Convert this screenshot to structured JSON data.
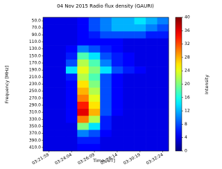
{
  "chart_data": {
    "type": "heatmap",
    "title": "04 Nov 2015 Radio flux density (GAURI)",
    "x_label": "Time [UT]",
    "y_label": "Frequency [MHz]",
    "colorbar_label": "Intensity",
    "colormap": "jet",
    "x": [
      "03:21:59",
      null,
      "03:24:04",
      null,
      "03:26:09",
      null,
      "03:28:14",
      null,
      "03:30:19",
      null,
      "03:32:24"
    ],
    "y": [
      "50.0",
      "70.0",
      "90.0",
      "110.0",
      "130.0",
      "150.0",
      "170.0",
      "190.0",
      "210.0",
      "230.0",
      "250.0",
      "270.0",
      "290.0",
      "310.0",
      "330.0",
      "350.0",
      "370.0",
      "390.0",
      "410.0"
    ],
    "values": [
      [
        4,
        4,
        4,
        5,
        8,
        10,
        12,
        12,
        14,
        12,
        10
      ],
      [
        4,
        4,
        4,
        5,
        8,
        10,
        12,
        12,
        12,
        10,
        8
      ],
      [
        4,
        4,
        4,
        5,
        6,
        8,
        8,
        8,
        8,
        6,
        6
      ],
      [
        4,
        4,
        4,
        5,
        5,
        5,
        5,
        4,
        4,
        4,
        4
      ],
      [
        4,
        4,
        5,
        10,
        8,
        6,
        5,
        4,
        4,
        4,
        4
      ],
      [
        4,
        4,
        6,
        18,
        14,
        8,
        6,
        5,
        4,
        4,
        4
      ],
      [
        4,
        4,
        8,
        22,
        18,
        10,
        6,
        5,
        4,
        4,
        4
      ],
      [
        4,
        4,
        14,
        24,
        20,
        14,
        8,
        6,
        5,
        4,
        4
      ],
      [
        4,
        4,
        6,
        22,
        18,
        8,
        5,
        4,
        4,
        4,
        4
      ],
      [
        4,
        4,
        5,
        26,
        20,
        8,
        5,
        4,
        4,
        4,
        4
      ],
      [
        4,
        4,
        5,
        28,
        22,
        8,
        5,
        4,
        4,
        4,
        4
      ],
      [
        4,
        4,
        5,
        30,
        24,
        8,
        5,
        4,
        4,
        4,
        4
      ],
      [
        4,
        4,
        5,
        34,
        26,
        8,
        5,
        4,
        4,
        4,
        4
      ],
      [
        4,
        4,
        5,
        36,
        28,
        8,
        5,
        4,
        4,
        4,
        4
      ],
      [
        4,
        4,
        5,
        30,
        22,
        6,
        4,
        4,
        4,
        4,
        4
      ],
      [
        4,
        4,
        4,
        20,
        14,
        6,
        4,
        4,
        4,
        4,
        4
      ],
      [
        4,
        4,
        4,
        10,
        8,
        5,
        4,
        4,
        4,
        4,
        4
      ],
      [
        4,
        4,
        4,
        6,
        6,
        4,
        4,
        4,
        4,
        4,
        4
      ],
      [
        4,
        4,
        4,
        5,
        5,
        4,
        4,
        4,
        4,
        4,
        4
      ]
    ],
    "zlim": [
      0,
      40
    ],
    "zticks": [
      0,
      4,
      8,
      12,
      16,
      20,
      24,
      28,
      32,
      36,
      40
    ]
  }
}
